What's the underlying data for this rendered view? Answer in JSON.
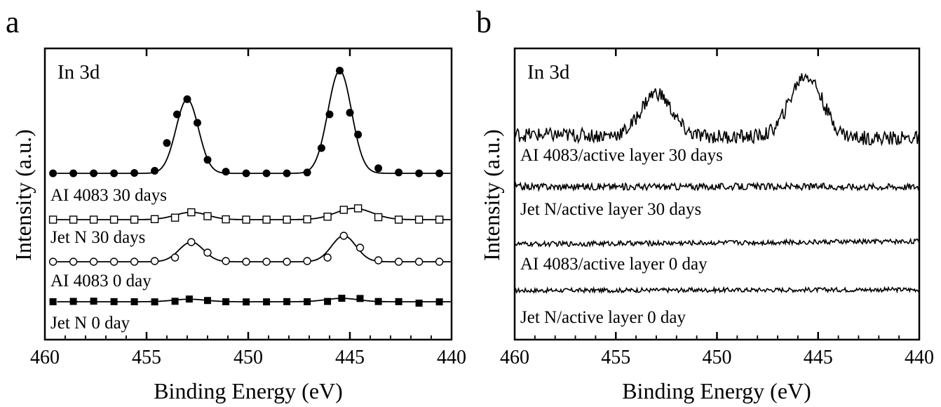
{
  "chart_data": [
    {
      "panel": "a",
      "type": "line",
      "xlabel": "Binding Energy (eV)",
      "ylabel": "Intensity (a.u.)",
      "xlim": [
        460,
        440
      ],
      "x_reversed": true,
      "xticks": [
        460,
        455,
        450,
        445,
        440
      ],
      "yticks": false,
      "annotation": "In 3d",
      "series": [
        {
          "name": "Jet N 0 day",
          "marker": "filled-square",
          "baseline": 0.0,
          "peaks": [
            {
              "x": 452.9,
              "height": 0.45,
              "width": 0.8
            },
            {
              "x": 445.4,
              "height": 0.6,
              "width": 0.8
            }
          ],
          "points": [
            [
              459.6,
              0.0
            ],
            [
              458.6,
              0.06
            ],
            [
              457.6,
              0.1
            ],
            [
              456.6,
              0.02
            ],
            [
              455.6,
              0.0
            ],
            [
              454.6,
              -0.02
            ],
            [
              453.6,
              0.08
            ],
            [
              452.9,
              0.48
            ],
            [
              452.0,
              0.22
            ],
            [
              451.1,
              0.0
            ],
            [
              450.1,
              -0.03
            ],
            [
              449.1,
              -0.02
            ],
            [
              448.1,
              0.02
            ],
            [
              447.1,
              0.0
            ],
            [
              446.1,
              0.05
            ],
            [
              445.4,
              0.62
            ],
            [
              444.5,
              0.58
            ],
            [
              443.6,
              0.04
            ],
            [
              442.6,
              0.02
            ],
            [
              441.6,
              -0.25
            ],
            [
              440.6,
              -0.02
            ]
          ]
        },
        {
          "name": "AI 4083 0 day",
          "marker": "open-circle",
          "baseline": 0.0,
          "peaks": [
            {
              "x": 452.8,
              "height": 1.4,
              "width": 0.6
            },
            {
              "x": 445.3,
              "height": 1.85,
              "width": 0.6
            }
          ],
          "points": [
            [
              459.6,
              0.0
            ],
            [
              458.6,
              0.0
            ],
            [
              457.6,
              0.0
            ],
            [
              456.6,
              0.0
            ],
            [
              455.6,
              0.0
            ],
            [
              454.6,
              0.05
            ],
            [
              453.6,
              0.3
            ],
            [
              452.8,
              1.4
            ],
            [
              452.0,
              0.65
            ],
            [
              451.1,
              0.05
            ],
            [
              450.1,
              0.0
            ],
            [
              449.1,
              0.0
            ],
            [
              448.1,
              0.0
            ],
            [
              447.1,
              0.05
            ],
            [
              446.1,
              0.3
            ],
            [
              445.3,
              1.85
            ],
            [
              444.5,
              1.0
            ],
            [
              443.6,
              0.1
            ],
            [
              442.6,
              0.0
            ],
            [
              441.6,
              0.0
            ],
            [
              440.6,
              0.0
            ]
          ]
        },
        {
          "name": "Jet N 30 days",
          "marker": "open-square",
          "baseline": 0.0,
          "peaks": [
            {
              "x": 452.8,
              "height": 0.75,
              "width": 0.8
            },
            {
              "x": 444.8,
              "height": 1.15,
              "width": 0.9
            }
          ],
          "points": [
            [
              459.6,
              0.0
            ],
            [
              458.6,
              0.0
            ],
            [
              457.6,
              0.0
            ],
            [
              456.6,
              0.0
            ],
            [
              455.6,
              0.0
            ],
            [
              454.6,
              0.05
            ],
            [
              453.6,
              0.2
            ],
            [
              452.8,
              0.75
            ],
            [
              452.0,
              0.35
            ],
            [
              451.1,
              0.03
            ],
            [
              450.1,
              0.0
            ],
            [
              449.1,
              0.0
            ],
            [
              448.1,
              0.0
            ],
            [
              447.1,
              0.03
            ],
            [
              446.1,
              0.3
            ],
            [
              445.3,
              1.0
            ],
            [
              444.6,
              1.15
            ],
            [
              443.6,
              0.25
            ],
            [
              442.6,
              0.0
            ],
            [
              441.6,
              0.0
            ],
            [
              440.6,
              0.0
            ]
          ]
        },
        {
          "name": "AI 4083 30 days",
          "marker": "filled-circle",
          "baseline": 0.0,
          "peaks": [
            {
              "x": 453.0,
              "height": 4.4,
              "width": 0.55
            },
            {
              "x": 445.5,
              "height": 6.1,
              "width": 0.58
            }
          ],
          "points": [
            [
              459.6,
              0.0
            ],
            [
              458.6,
              0.0
            ],
            [
              457.6,
              0.0
            ],
            [
              456.6,
              0.0
            ],
            [
              455.6,
              0.02
            ],
            [
              454.6,
              0.15
            ],
            [
              454.0,
              1.8
            ],
            [
              453.5,
              3.5
            ],
            [
              453.0,
              4.4
            ],
            [
              452.5,
              3.0
            ],
            [
              452.0,
              0.8
            ],
            [
              451.1,
              0.1
            ],
            [
              450.1,
              0.0
            ],
            [
              449.1,
              0.0
            ],
            [
              448.1,
              0.0
            ],
            [
              447.1,
              0.05
            ],
            [
              446.4,
              1.5
            ],
            [
              446.0,
              3.5
            ],
            [
              445.5,
              6.1
            ],
            [
              445.0,
              3.6
            ],
            [
              444.6,
              2.3
            ],
            [
              443.6,
              0.3
            ],
            [
              442.6,
              0.05
            ],
            [
              441.6,
              0.0
            ],
            [
              440.6,
              0.0
            ]
          ]
        }
      ]
    },
    {
      "panel": "b",
      "type": "line",
      "xlabel": "Binding Energy (eV)",
      "ylabel": "Intensity (a.u.)",
      "xlim": [
        460,
        440
      ],
      "x_reversed": true,
      "xticks": [
        460,
        455,
        450,
        445,
        440
      ],
      "yticks": false,
      "annotation": "In 3d",
      "series": [
        {
          "name": "Jet N/active layer 0 day",
          "baseline": 0.0,
          "slope": 0.2,
          "noise": 0.45,
          "peaks": []
        },
        {
          "name": "AI 4083/active layer 0 day",
          "baseline": 0.0,
          "slope": 0.6,
          "noise": 0.5,
          "peaks": []
        },
        {
          "name": "Jet N/active layer 30 days",
          "baseline": 0.0,
          "slope": 0.0,
          "noise": 0.7,
          "peaks": []
        },
        {
          "name": "AI 4083/active layer 30 days",
          "baseline": 0.0,
          "slope": -0.3,
          "noise": 0.6,
          "peaks": [
            {
              "x": 453.0,
              "height": 3.6,
              "width": 0.75
            },
            {
              "x": 445.6,
              "height": 5.2,
              "width": 0.8
            }
          ]
        }
      ]
    }
  ]
}
